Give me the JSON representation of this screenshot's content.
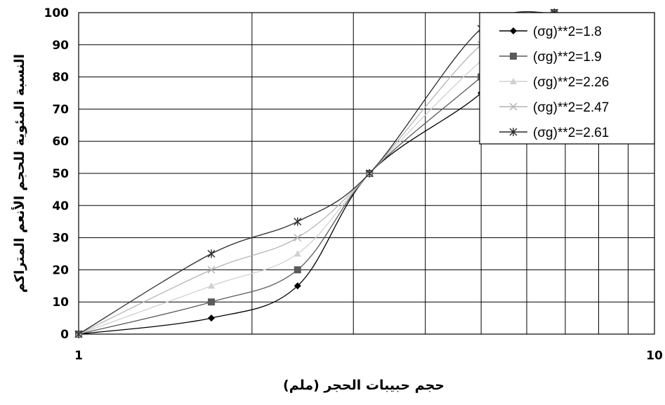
{
  "chart_data": {
    "type": "line",
    "xscale": "log",
    "xlim": [
      1,
      10
    ],
    "ylim": [
      0,
      100
    ],
    "x_tick_labels": [
      "1",
      "10"
    ],
    "y_ticks": [
      0,
      10,
      20,
      30,
      40,
      50,
      60,
      70,
      80,
      90,
      100
    ],
    "xlabel": "حجم حبيبات الحجر (ملم)",
    "ylabel": "النسبة المئوية للحجم الأنعم المتراكم",
    "grid": true,
    "legend_position": "top-right",
    "series": [
      {
        "name": "(σg)**2=1.8",
        "color": "#000000",
        "marker": "diamond",
        "x": [
          1,
          1.7,
          2.4,
          3.2,
          5,
          6.7
        ],
        "y": [
          0,
          5,
          15,
          50,
          75,
          100
        ]
      },
      {
        "name": "(σg)**2=1.9",
        "color": "#5a5a5a",
        "marker": "square",
        "x": [
          1,
          1.7,
          2.4,
          3.2,
          5,
          6.7
        ],
        "y": [
          0,
          10,
          20,
          50,
          80,
          100
        ]
      },
      {
        "name": "(σg)**2=2.26",
        "color": "#d0d0d0",
        "marker": "triangle",
        "x": [
          1,
          1.7,
          2.4,
          3.2,
          5,
          6.7
        ],
        "y": [
          0,
          15,
          25,
          50,
          85,
          100
        ]
      },
      {
        "name": "(σg)**2=2.47",
        "color": "#b4b4b4",
        "marker": "x",
        "x": [
          1,
          1.7,
          2.4,
          3.2,
          5,
          6.7
        ],
        "y": [
          0,
          20,
          30,
          50,
          90,
          100
        ]
      },
      {
        "name": "(σg)**2=2.61",
        "color": "#2a2a2a",
        "marker": "star",
        "x": [
          1,
          1.7,
          2.4,
          3.2,
          5,
          6.7
        ],
        "y": [
          0,
          25,
          35,
          50,
          95,
          100
        ]
      }
    ]
  }
}
